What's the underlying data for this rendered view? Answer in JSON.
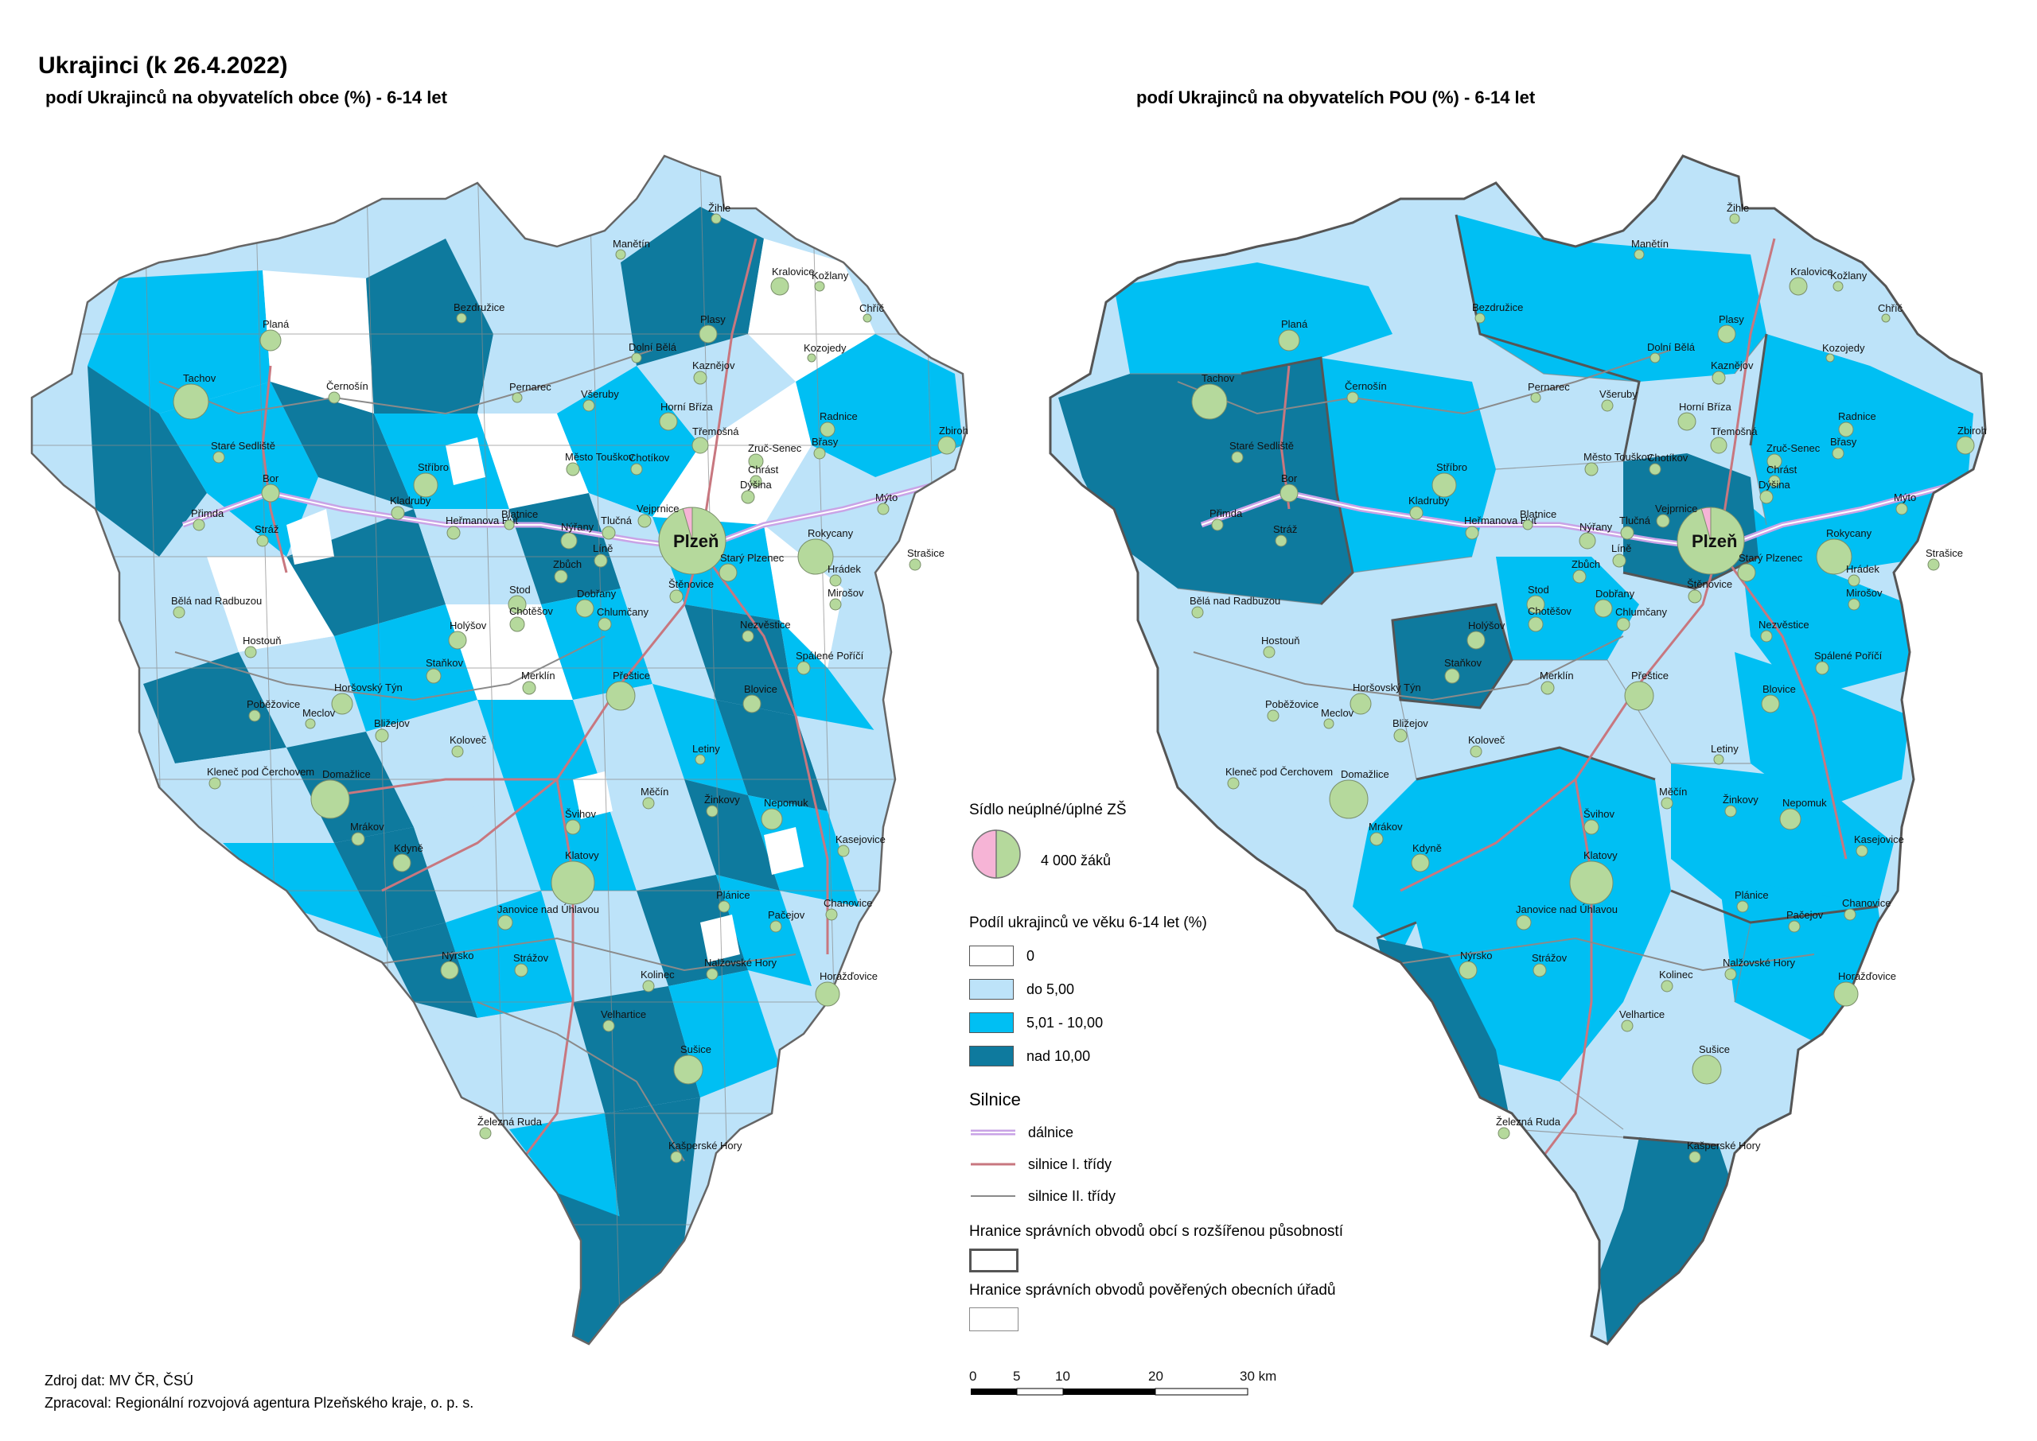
{
  "title": "Ukrajinci (k 26.4.2022)",
  "left_map": {
    "subtitle": "podí Ukrajinců na obyvatelích obce (%) -  6-14 let"
  },
  "right_map": {
    "subtitle": "podí Ukrajinců na obyvatelích POU (%) -  6-14 let"
  },
  "places": [
    {
      "name": "Plzeň",
      "major": true
    },
    {
      "name": "Tachov"
    },
    {
      "name": "Planá"
    },
    {
      "name": "Bor"
    },
    {
      "name": "Přimda"
    },
    {
      "name": "Stráž"
    },
    {
      "name": "Staré Sedliště"
    },
    {
      "name": "Černošín"
    },
    {
      "name": "Stříbro"
    },
    {
      "name": "Kladruby"
    },
    {
      "name": "Heřmanova Huť"
    },
    {
      "name": "Bezdružice"
    },
    {
      "name": "Manětín"
    },
    {
      "name": "Žihle"
    },
    {
      "name": "Kralovice"
    },
    {
      "name": "Kožlany"
    },
    {
      "name": "Chříč"
    },
    {
      "name": "Plasy"
    },
    {
      "name": "Dolní Bělá"
    },
    {
      "name": "Kaznějov"
    },
    {
      "name": "Kozojedy"
    },
    {
      "name": "Pernarec"
    },
    {
      "name": "Všeruby"
    },
    {
      "name": "Horní Bříza"
    },
    {
      "name": "Radnice"
    },
    {
      "name": "Břasy"
    },
    {
      "name": "Zbiroh"
    },
    {
      "name": "Třemošná"
    },
    {
      "name": "Zruč-Senec"
    },
    {
      "name": "Chrást"
    },
    {
      "name": "Dýšina"
    },
    {
      "name": "Město Touškov"
    },
    {
      "name": "Chotíkov"
    },
    {
      "name": "Vejprnice"
    },
    {
      "name": "Blatnice"
    },
    {
      "name": "Nýřany"
    },
    {
      "name": "Tlučná"
    },
    {
      "name": "Líně"
    },
    {
      "name": "Zbůch"
    },
    {
      "name": "Stod"
    },
    {
      "name": "Chotěšov"
    },
    {
      "name": "Dobřany"
    },
    {
      "name": "Štěnovice"
    },
    {
      "name": "Starý Plzenec"
    },
    {
      "name": "Rokycany"
    },
    {
      "name": "Mýto"
    },
    {
      "name": "Hrádek"
    },
    {
      "name": "Strašice"
    },
    {
      "name": "Mirošov"
    },
    {
      "name": "Bělá nad Radbuzou"
    },
    {
      "name": "Hostouň"
    },
    {
      "name": "Holýšov"
    },
    {
      "name": "Chlumčany"
    },
    {
      "name": "Nezvěstice"
    },
    {
      "name": "Staňkov"
    },
    {
      "name": "Merklín"
    },
    {
      "name": "Přeštice"
    },
    {
      "name": "Spálené Poříčí"
    },
    {
      "name": "Blovice"
    },
    {
      "name": "Horšovský Týn"
    },
    {
      "name": "Poběžovice"
    },
    {
      "name": "Meclov"
    },
    {
      "name": "Bližejov"
    },
    {
      "name": "Koloveč"
    },
    {
      "name": "Letiny"
    },
    {
      "name": "Kleneč pod Čerchovem"
    },
    {
      "name": "Domažlice"
    },
    {
      "name": "Švihov"
    },
    {
      "name": "Měčín"
    },
    {
      "name": "Žinkovy"
    },
    {
      "name": "Nepomuk"
    },
    {
      "name": "Mrákov"
    },
    {
      "name": "Kdyně"
    },
    {
      "name": "Kasejovice"
    },
    {
      "name": "Klatovy"
    },
    {
      "name": "Plánice"
    },
    {
      "name": "Chanovice"
    },
    {
      "name": "Janovice nad Úhlavou"
    },
    {
      "name": "Pačejov"
    },
    {
      "name": "Nýrsko"
    },
    {
      "name": "Strážov"
    },
    {
      "name": "Nalžovské Hory"
    },
    {
      "name": "Kolinec"
    },
    {
      "name": "Horažďovice"
    },
    {
      "name": "Velhartice"
    },
    {
      "name": "Sušice"
    },
    {
      "name": "Železná Ruda"
    },
    {
      "name": "Kašperské Hory"
    }
  ],
  "legend": {
    "school_title": "Sídlo neúplné/úplné ZŠ",
    "school_size_label": "4 000 žáků",
    "share_title": "Podíl ukrajinců ve věku 6-14 let  (%)",
    "classes": [
      {
        "label": "0",
        "color": "#ffffff"
      },
      {
        "label": "do 5,00",
        "color": "#bde3f9"
      },
      {
        "label": "5,01 - 10,00",
        "color": "#00bff3"
      },
      {
        "label": "nad 10,00",
        "color": "#0e7a9e"
      }
    ],
    "roads_title": "Silnice",
    "roads": [
      {
        "label": "dálnice",
        "color": "#c9a3e6"
      },
      {
        "label": "silnice I. třídy",
        "color": "#c8777f"
      },
      {
        "label": "silnice II. třídy",
        "color": "#8a8a8a"
      }
    ],
    "orp_boundary": "Hranice správních obvodů obcí s rozšířenou působností",
    "pou_boundary": "Hranice správních obvodů pověřených obecních úřadů"
  },
  "scale": {
    "ticks": [
      "0",
      "5",
      "10",
      "20",
      "30 km"
    ]
  },
  "source": {
    "data": "Zdroj dat: MV ČR, ČSÚ",
    "author": "Zpracoval: Regionální rozvojová agentura Plzeňského kraje, o. p. s."
  }
}
